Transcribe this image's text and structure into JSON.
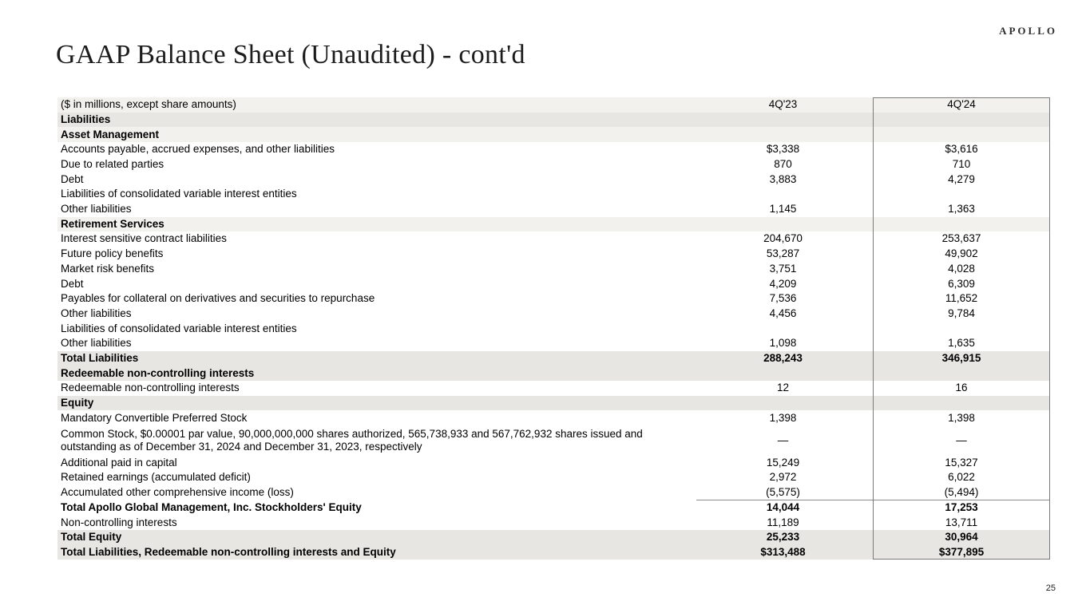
{
  "brand": {
    "logo": "APOLLO"
  },
  "title": "GAAP Balance Sheet (Unaudited) - cont'd",
  "page": {
    "number": "25"
  },
  "colors": {
    "row_shade_dark": "#e7e6e2",
    "row_shade_light": "#f2f1ee",
    "highlight_box_border": "#7a7a7a"
  },
  "table": {
    "header": {
      "label": "($ in millions, except share amounts)",
      "col1": "4Q'23",
      "col2": "4Q'24"
    },
    "rows": [
      {
        "label": "Liabilities",
        "v23": "",
        "v24": "",
        "indent": 0,
        "bold": true,
        "shade": "dark"
      },
      {
        "label": "Asset Management",
        "v23": "",
        "v24": "",
        "indent": 0,
        "bold": true,
        "shade": "light"
      },
      {
        "label": "Accounts payable, accrued expenses, and other liabilities",
        "v23": "$3,338",
        "v24": "$3,616",
        "indent": 1
      },
      {
        "label": "Due to related parties",
        "v23": "870",
        "v24": "710",
        "indent": 1
      },
      {
        "label": "Debt",
        "v23": "3,883",
        "v24": "4,279",
        "indent": 1
      },
      {
        "label": "Liabilities of consolidated variable interest entities",
        "v23": "",
        "v24": "",
        "indent": 1
      },
      {
        "label": "Other liabilities",
        "v23": "1,145",
        "v24": "1,363",
        "indent": 3
      },
      {
        "label": "Retirement Services",
        "v23": "",
        "v24": "",
        "indent": 0,
        "bold": true,
        "shade": "light"
      },
      {
        "label": "Interest sensitive contract liabilities",
        "v23": "204,670",
        "v24": "253,637",
        "indent": 1
      },
      {
        "label": "Future policy benefits",
        "v23": "53,287",
        "v24": "49,902",
        "indent": 1
      },
      {
        "label": "Market risk benefits",
        "v23": "3,751",
        "v24": "4,028",
        "indent": 1
      },
      {
        "label": "Debt",
        "v23": "4,209",
        "v24": "6,309",
        "indent": 1
      },
      {
        "label": "Payables for collateral on derivatives and securities to repurchase",
        "v23": "7,536",
        "v24": "11,652",
        "indent": 1
      },
      {
        "label": "Other liabilities",
        "v23": "4,456",
        "v24": "9,784",
        "indent": 1
      },
      {
        "label": "Liabilities of consolidated variable interest entities",
        "v23": "",
        "v24": "",
        "indent": 1
      },
      {
        "label": "Other liabilities",
        "v23": "1,098",
        "v24": "1,635",
        "indent": 3
      },
      {
        "label": "Total Liabilities",
        "v23": "288,243",
        "v24": "346,915",
        "indent": 1,
        "bold": true,
        "shade": "dark"
      },
      {
        "label": "Redeemable non-controlling interests",
        "v23": "",
        "v24": "",
        "indent": 0,
        "bold": true,
        "shade": "dark"
      },
      {
        "label": "Redeemable non-controlling interests",
        "v23": "12",
        "v24": "16",
        "indent": 1
      },
      {
        "label": "Equity",
        "v23": "",
        "v24": "",
        "indent": 0,
        "bold": true,
        "shade": "dark"
      },
      {
        "label": "Mandatory Convertible Preferred Stock",
        "v23": "1,398",
        "v24": "1,398",
        "indent": 1
      },
      {
        "label": "Common Stock, $0.00001 par value, 90,000,000,000 shares authorized, 565,738,933 and 567,762,932 shares issued and outstanding as of December 31, 2024 and December 31, 2023, respectively",
        "v23": "—",
        "v24": "—",
        "indent": 1,
        "tall": true
      },
      {
        "label": "Additional paid in capital",
        "v23": "15,249",
        "v24": "15,327",
        "indent": 1
      },
      {
        "label": "Retained earnings (accumulated deficit)",
        "v23": "2,972",
        "v24": "6,022",
        "indent": 1
      },
      {
        "label": "Accumulated other comprehensive income (loss)",
        "v23": "(5,575)",
        "v24": "(5,494)",
        "indent": 1
      },
      {
        "label": "Total Apollo Global Management, Inc. Stockholders' Equity",
        "v23": "14,044",
        "v24": "17,253",
        "indent": 2,
        "bold": true,
        "topline": true
      },
      {
        "label": "Non-controlling interests",
        "v23": "11,189",
        "v24": "13,711",
        "indent": 1
      },
      {
        "label": "Total Equity",
        "v23": "25,233",
        "v24": "30,964",
        "indent": 0,
        "bold": true,
        "shade": "dark"
      },
      {
        "label": "Total Liabilities, Redeemable non-controlling interests and Equity",
        "v23": "$313,488",
        "v24": "$377,895",
        "indent": 2,
        "bold": true,
        "shade": "dark"
      }
    ]
  }
}
